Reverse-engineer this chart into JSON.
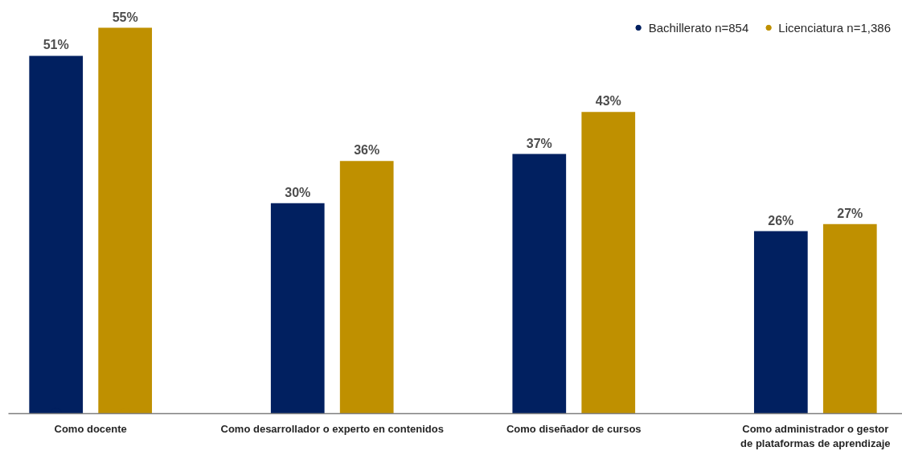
{
  "chart_data": {
    "type": "bar",
    "categories": [
      "Como docente",
      "Como desarrollador o experto en contenidos",
      "Como diseñador de cursos",
      "Como administrador o gestor de plataformas de aprendizaje"
    ],
    "series": [
      {
        "name": "Bachillerato n=854",
        "color": "#012060",
        "values": [
          51,
          30,
          37,
          26
        ],
        "value_labels": [
          "51%",
          "30%",
          "37%",
          "26%"
        ]
      },
      {
        "name": "Licenciatura n=1,386",
        "color": "#bf9000",
        "values": [
          55,
          36,
          43,
          27
        ],
        "value_labels": [
          "55%",
          "36%",
          "43%",
          "27%"
        ]
      }
    ],
    "tick_labels": "x",
    "grid": false,
    "legend": "top right",
    "marker": "circle"
  }
}
